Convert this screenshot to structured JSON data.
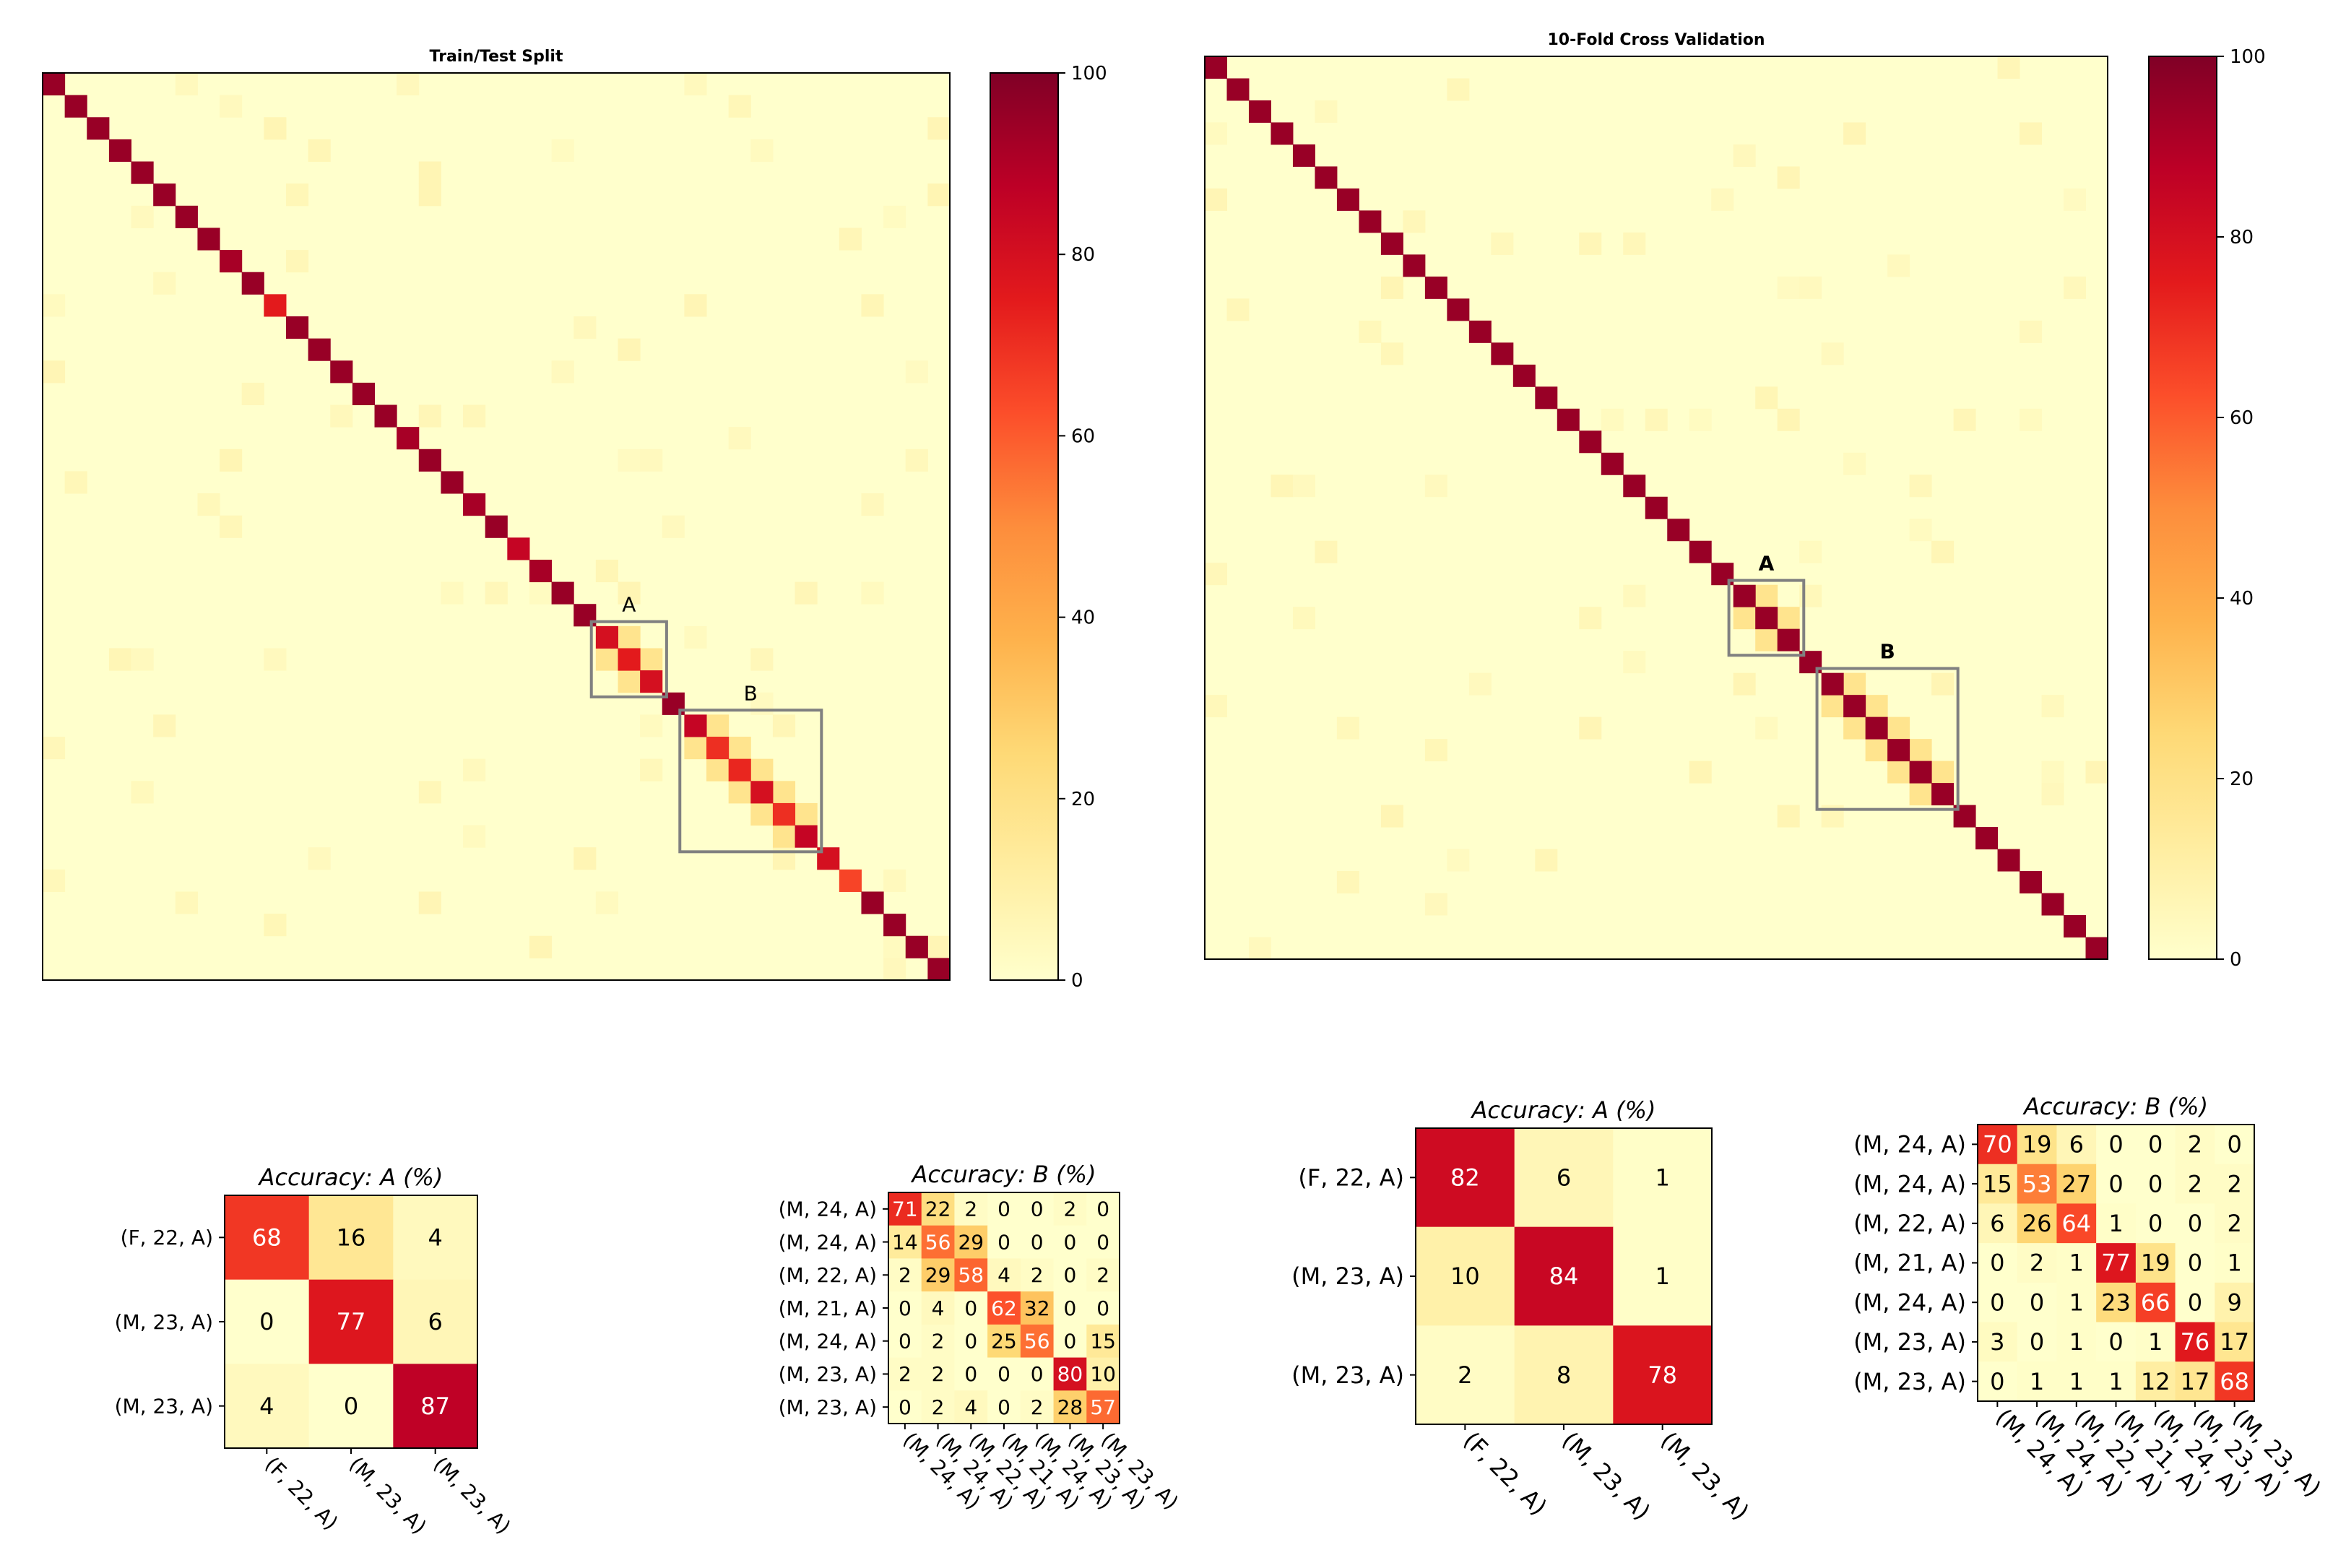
{
  "chart_data": [
    {
      "type": "heatmap",
      "id": "main-train",
      "title": "Train/Test Split",
      "n": 41,
      "colorbar": {
        "ticks": [
          0,
          20,
          40,
          60,
          80,
          100
        ],
        "range": [
          0,
          100
        ]
      },
      "diag": [
        95,
        95,
        95,
        95,
        95,
        95,
        95,
        95,
        92,
        95,
        75,
        95,
        95,
        95,
        95,
        95,
        92,
        95,
        95,
        92,
        95,
        85,
        92,
        95,
        95,
        80,
        75,
        80,
        95,
        85,
        70,
        72,
        80,
        70,
        85,
        80,
        65,
        95,
        95,
        95,
        95
      ],
      "region_labels": [
        "A",
        "B"
      ]
    },
    {
      "type": "heatmap",
      "id": "main-cv",
      "title": "10-Fold Cross Validation",
      "n": 41,
      "colorbar": {
        "ticks": [
          0,
          20,
          40,
          60,
          80,
          100
        ],
        "range": [
          0,
          100
        ]
      },
      "diag": [
        95,
        95,
        95,
        95,
        95,
        95,
        95,
        95,
        95,
        95,
        95,
        95,
        95,
        95,
        95,
        95,
        95,
        95,
        95,
        95,
        95,
        95,
        95,
        95,
        95,
        95,
        95,
        95,
        95,
        95,
        95,
        95,
        95,
        95,
        95,
        95,
        95,
        95,
        95,
        95,
        95
      ],
      "region_labels": [
        "A",
        "B"
      ]
    },
    {
      "type": "heatmap",
      "id": "train-a",
      "title": "Accuracy: A (%)",
      "rows": [
        "(F, 22, A)",
        "(M, 23, A)",
        "(M, 23, A)"
      ],
      "cols": [
        "(F, 22, A)",
        "(M, 23, A)",
        "(M, 23, A)"
      ],
      "values": [
        [
          68,
          16,
          4
        ],
        [
          0,
          77,
          6
        ],
        [
          4,
          0,
          87
        ]
      ]
    },
    {
      "type": "heatmap",
      "id": "train-b",
      "title": "Accuracy: B (%)",
      "rows": [
        "(M, 24, A)",
        "(M, 24, A)",
        "(M, 22, A)",
        "(M, 21, A)",
        "(M, 24, A)",
        "(M, 23, A)",
        "(M, 23, A)"
      ],
      "cols": [
        "(M, 24, A)",
        "(M, 24, A)",
        "(M, 22, A)",
        "(M, 21, A)",
        "(M, 24, A)",
        "(M, 23, A)",
        "(M, 23, A)"
      ],
      "values": [
        [
          71,
          22,
          2,
          0,
          0,
          2,
          0
        ],
        [
          14,
          56,
          29,
          0,
          0,
          0,
          0
        ],
        [
          2,
          29,
          58,
          4,
          2,
          0,
          2
        ],
        [
          0,
          4,
          0,
          62,
          32,
          0,
          0
        ],
        [
          0,
          2,
          0,
          25,
          56,
          0,
          15
        ],
        [
          2,
          2,
          0,
          0,
          0,
          80,
          10
        ],
        [
          0,
          2,
          4,
          0,
          2,
          28,
          57
        ]
      ]
    },
    {
      "type": "heatmap",
      "id": "cv-a",
      "title": "Accuracy: A (%)",
      "rows": [
        "(F, 22, A)",
        "(M, 23, A)",
        "(M, 23, A)"
      ],
      "cols": [
        "(F, 22, A)",
        "(M, 23, A)",
        "(M, 23, A)"
      ],
      "values": [
        [
          82,
          6,
          1
        ],
        [
          10,
          84,
          1
        ],
        [
          2,
          8,
          78
        ]
      ]
    },
    {
      "type": "heatmap",
      "id": "cv-b",
      "title": "Accuracy: B (%)",
      "rows": [
        "(M, 24, A)",
        "(M, 24, A)",
        "(M, 22, A)",
        "(M, 21, A)",
        "(M, 24, A)",
        "(M, 23, A)",
        "(M, 23, A)"
      ],
      "cols": [
        "(M, 24, A)",
        "(M, 24, A)",
        "(M, 22, A)",
        "(M, 21, A)",
        "(M, 24, A)",
        "(M, 23, A)",
        "(M, 23, A)"
      ],
      "values": [
        [
          70,
          19,
          6,
          0,
          0,
          2,
          0
        ],
        [
          15,
          53,
          27,
          0,
          0,
          2,
          2
        ],
        [
          6,
          26,
          64,
          1,
          0,
          0,
          2
        ],
        [
          0,
          2,
          1,
          77,
          19,
          0,
          1
        ],
        [
          0,
          0,
          1,
          23,
          66,
          0,
          9
        ],
        [
          3,
          0,
          1,
          0,
          1,
          76,
          17
        ],
        [
          0,
          1,
          1,
          1,
          12,
          17,
          68
        ]
      ]
    }
  ]
}
